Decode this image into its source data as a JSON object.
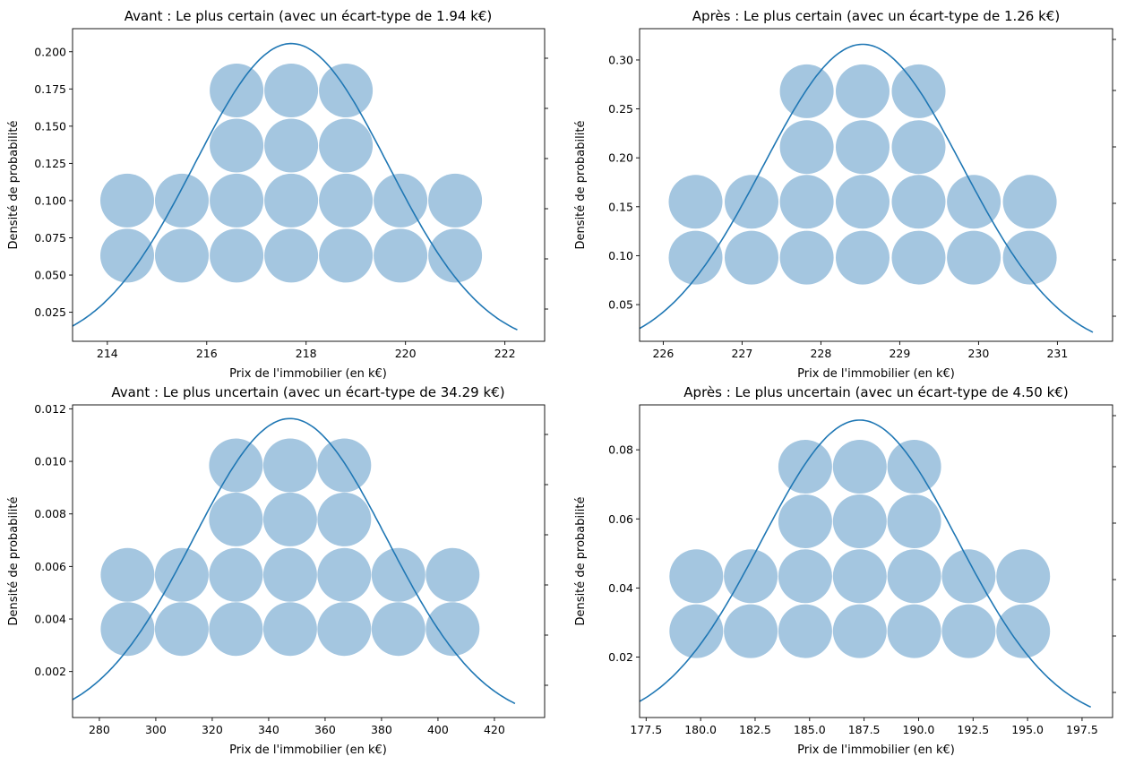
{
  "colors": {
    "bubble": "#a4c6e0",
    "curve": "#1f77b4",
    "axis": "#000000"
  },
  "chart_data": [
    {
      "type": "scatter",
      "title": "Avant : Le plus certain (avec un écart-type de 1.94 k€)",
      "xlabel": "Prix de l'immobilier (en k€)",
      "ylabel": "Densité de probabilité",
      "xlim": [
        213.3,
        222.8
      ],
      "ylim": [
        0.0055,
        0.2155
      ],
      "xticks": [
        214,
        216,
        218,
        220,
        222
      ],
      "xtick_labels": [
        "214",
        "216",
        "218",
        "220",
        "222"
      ],
      "yticks": [
        0.025,
        0.05,
        0.075,
        0.1,
        0.125,
        0.15,
        0.175,
        0.2
      ],
      "ytick_labels": [
        "0.025",
        "0.050",
        "0.075",
        "0.100",
        "0.125",
        "0.150",
        "0.175",
        "0.200"
      ],
      "curve": {
        "mean": 217.7,
        "max_density": 0.2055,
        "x_range": [
          213.3,
          222.25
        ]
      },
      "bubbles": {
        "x": [
          214.4,
          215.5,
          216.6,
          217.7,
          218.8,
          219.9,
          221.0
        ],
        "rows": [
          {
            "y": 0.063,
            "columns": [
              0,
              1,
              2,
              3,
              4,
              5,
              6
            ]
          },
          {
            "y": 0.1,
            "columns": [
              0,
              1,
              2,
              3,
              4,
              5,
              6
            ]
          },
          {
            "y": 0.137,
            "columns": [
              2,
              3,
              4
            ]
          },
          {
            "y": 0.174,
            "columns": [
              2,
              3,
              4
            ]
          }
        ]
      }
    },
    {
      "type": "scatter",
      "title": "Après : Le plus certain (avec un écart-type de 1.26 k€)",
      "xlabel": "Prix de l'immobilier (en k€)",
      "ylabel": "Densité de probabilité",
      "xlim": [
        225.7,
        231.7
      ],
      "ylim": [
        0.0125,
        0.332
      ],
      "xticks": [
        226,
        227,
        228,
        229,
        230,
        231
      ],
      "xtick_labels": [
        "226",
        "227",
        "228",
        "229",
        "230",
        "231"
      ],
      "yticks": [
        0.05,
        0.1,
        0.15,
        0.2,
        0.25,
        0.3
      ],
      "ytick_labels": [
        "0.05",
        "0.10",
        "0.15",
        "0.20",
        "0.25",
        "0.30"
      ],
      "curve": {
        "mean": 228.53,
        "max_density": 0.316,
        "x_range": [
          225.7,
          231.45
        ]
      },
      "bubbles": {
        "x": [
          226.41,
          227.12,
          227.82,
          228.53,
          229.24,
          229.94,
          230.65
        ],
        "rows": [
          {
            "y": 0.098,
            "columns": [
              0,
              1,
              2,
              3,
              4,
              5,
              6
            ]
          },
          {
            "y": 0.155,
            "columns": [
              0,
              1,
              2,
              3,
              4,
              5,
              6
            ]
          },
          {
            "y": 0.211,
            "columns": [
              2,
              3,
              4
            ]
          },
          {
            "y": 0.268,
            "columns": [
              2,
              3,
              4
            ]
          }
        ]
      }
    },
    {
      "type": "scatter",
      "title": "Avant : Le plus uncertain (avec un écart-type de 34.29 k€)",
      "xlabel": "Prix de l'immobilier (en k€)",
      "ylabel": "Densité de probabilité",
      "xlim": [
        270.5,
        437.8
      ],
      "ylim": [
        0.00025,
        0.01215
      ],
      "xticks": [
        280,
        300,
        320,
        340,
        360,
        380,
        400,
        420
      ],
      "xtick_labels": [
        "280",
        "300",
        "320",
        "340",
        "360",
        "380",
        "400",
        "420"
      ],
      "yticks": [
        0.002,
        0.004,
        0.006,
        0.008,
        0.01,
        0.012
      ],
      "ytick_labels": [
        "0.002",
        "0.004",
        "0.006",
        "0.008",
        "0.010",
        "0.012"
      ],
      "curve": {
        "mean": 347.6,
        "max_density": 0.01163,
        "x_range": [
          270.5,
          427.3
        ]
      },
      "bubbles": {
        "x": [
          290.0,
          309.2,
          328.4,
          347.6,
          366.8,
          386.0,
          405.2
        ],
        "rows": [
          {
            "y": 0.00362,
            "columns": [
              0,
              1,
              2,
              3,
              4,
              5,
              6
            ]
          },
          {
            "y": 0.00568,
            "columns": [
              0,
              1,
              2,
              3,
              4,
              5,
              6
            ]
          },
          {
            "y": 0.00779,
            "columns": [
              2,
              3,
              4
            ]
          },
          {
            "y": 0.00985,
            "columns": [
              2,
              3,
              4
            ]
          }
        ]
      }
    },
    {
      "type": "scatter",
      "title": "Après : Le plus uncertain (avec un écart-type de 4.50 k€)",
      "xlabel": "Prix de l'immobilier (en k€)",
      "ylabel": "Densité de probabilité",
      "xlim": [
        177.2,
        198.9
      ],
      "ylim": [
        0.0025,
        0.093
      ],
      "xticks": [
        177.5,
        180,
        182.5,
        185,
        187.5,
        190,
        192.5,
        195,
        197.5
      ],
      "xtick_labels": [
        "177.5",
        "180.0",
        "182.5",
        "185.0",
        "187.5",
        "190.0",
        "192.5",
        "195.0",
        "197.5"
      ],
      "yticks": [
        0.02,
        0.04,
        0.06,
        0.08
      ],
      "ytick_labels": [
        "0.02",
        "0.04",
        "0.06",
        "0.08"
      ],
      "curve": {
        "mean": 187.3,
        "max_density": 0.0886,
        "x_range": [
          177.2,
          197.9
        ]
      },
      "bubbles": {
        "x": [
          179.8,
          182.3,
          184.8,
          187.3,
          189.8,
          192.3,
          194.8
        ],
        "rows": [
          {
            "y": 0.0275,
            "columns": [
              0,
              1,
              2,
              3,
              4,
              5,
              6
            ]
          },
          {
            "y": 0.0434,
            "columns": [
              0,
              1,
              2,
              3,
              4,
              5,
              6
            ]
          },
          {
            "y": 0.0593,
            "columns": [
              2,
              3,
              4
            ]
          },
          {
            "y": 0.0751,
            "columns": [
              2,
              3,
              4
            ]
          }
        ]
      }
    }
  ]
}
